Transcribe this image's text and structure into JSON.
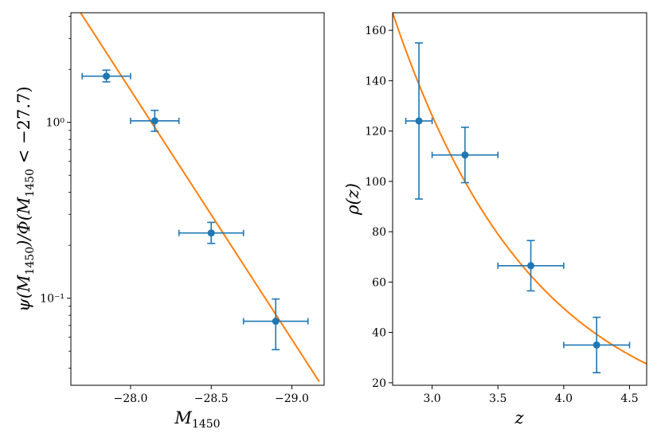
{
  "chart_data": [
    {
      "type": "scatter",
      "yscale": "log",
      "xlabel": "M_1450",
      "ylabel": "ψ(M_1450)/Φ(M_1450 < −27.7)",
      "xlim": [
        -27.63,
        -29.2
      ],
      "ylim": [
        0.032,
        4.2
      ],
      "xticks": [
        {
          "value": -28.0,
          "label": "−28.0"
        },
        {
          "value": -28.5,
          "label": "−28.5"
        },
        {
          "value": -29.0,
          "label": "−29.0"
        }
      ],
      "yticks": [
        {
          "value": 1.0,
          "label": "10⁰"
        },
        {
          "value": 0.1,
          "label": "10⁻¹"
        }
      ],
      "points": [
        {
          "x": -27.85,
          "y": 1.83,
          "xerr": 0.15,
          "yerr_low": 0.13,
          "yerr_high": 0.15
        },
        {
          "x": -28.15,
          "y": 1.02,
          "xerr": 0.15,
          "yerr_low": 0.13,
          "yerr_high": 0.15
        },
        {
          "x": -28.5,
          "y": 0.235,
          "xerr": 0.2,
          "yerr_low": 0.03,
          "yerr_high": 0.035
        },
        {
          "x": -28.9,
          "y": 0.074,
          "xerr": 0.2,
          "yerr_low": 0.023,
          "yerr_high": 0.025
        }
      ],
      "fit_line": {
        "x": [
          -27.69,
          -29.17
        ],
        "y": [
          4.2,
          0.0335
        ]
      },
      "point_color": "#1f77b4",
      "fit_color": "#ff7f0e"
    },
    {
      "type": "scatter",
      "yscale": "linear",
      "xlabel": "z",
      "ylabel": "ρ(z)",
      "xlim": [
        2.7,
        4.63
      ],
      "ylim": [
        19,
        167
      ],
      "xticks": [
        {
          "value": 3.0,
          "label": "3.0"
        },
        {
          "value": 3.5,
          "label": "3.5"
        },
        {
          "value": 4.0,
          "label": "4.0"
        },
        {
          "value": 4.5,
          "label": "4.5"
        }
      ],
      "yticks": [
        {
          "value": 20,
          "label": "20"
        },
        {
          "value": 40,
          "label": "40"
        },
        {
          "value": 60,
          "label": "60"
        },
        {
          "value": 80,
          "label": "80"
        },
        {
          "value": 100,
          "label": "100"
        },
        {
          "value": 120,
          "label": "120"
        },
        {
          "value": 140,
          "label": "140"
        },
        {
          "value": 160,
          "label": "160"
        }
      ],
      "points": [
        {
          "x": 2.9,
          "y": 124,
          "xerr": 0.1,
          "yerr_low": 31,
          "yerr_high": 31
        },
        {
          "x": 3.25,
          "y": 110.5,
          "xerr": 0.25,
          "yerr_low": 11,
          "yerr_high": 11
        },
        {
          "x": 3.75,
          "y": 66.5,
          "xerr": 0.25,
          "yerr_low": 10,
          "yerr_high": 10
        },
        {
          "x": 4.25,
          "y": 35,
          "xerr": 0.25,
          "yerr_low": 11,
          "yerr_high": 11
        }
      ],
      "fit_curve": {
        "form": "exponential",
        "y_at_xmin": 167,
        "y_at_xmax": 27.5
      },
      "point_color": "#1f77b4",
      "fit_color": "#ff7f0e"
    }
  ]
}
